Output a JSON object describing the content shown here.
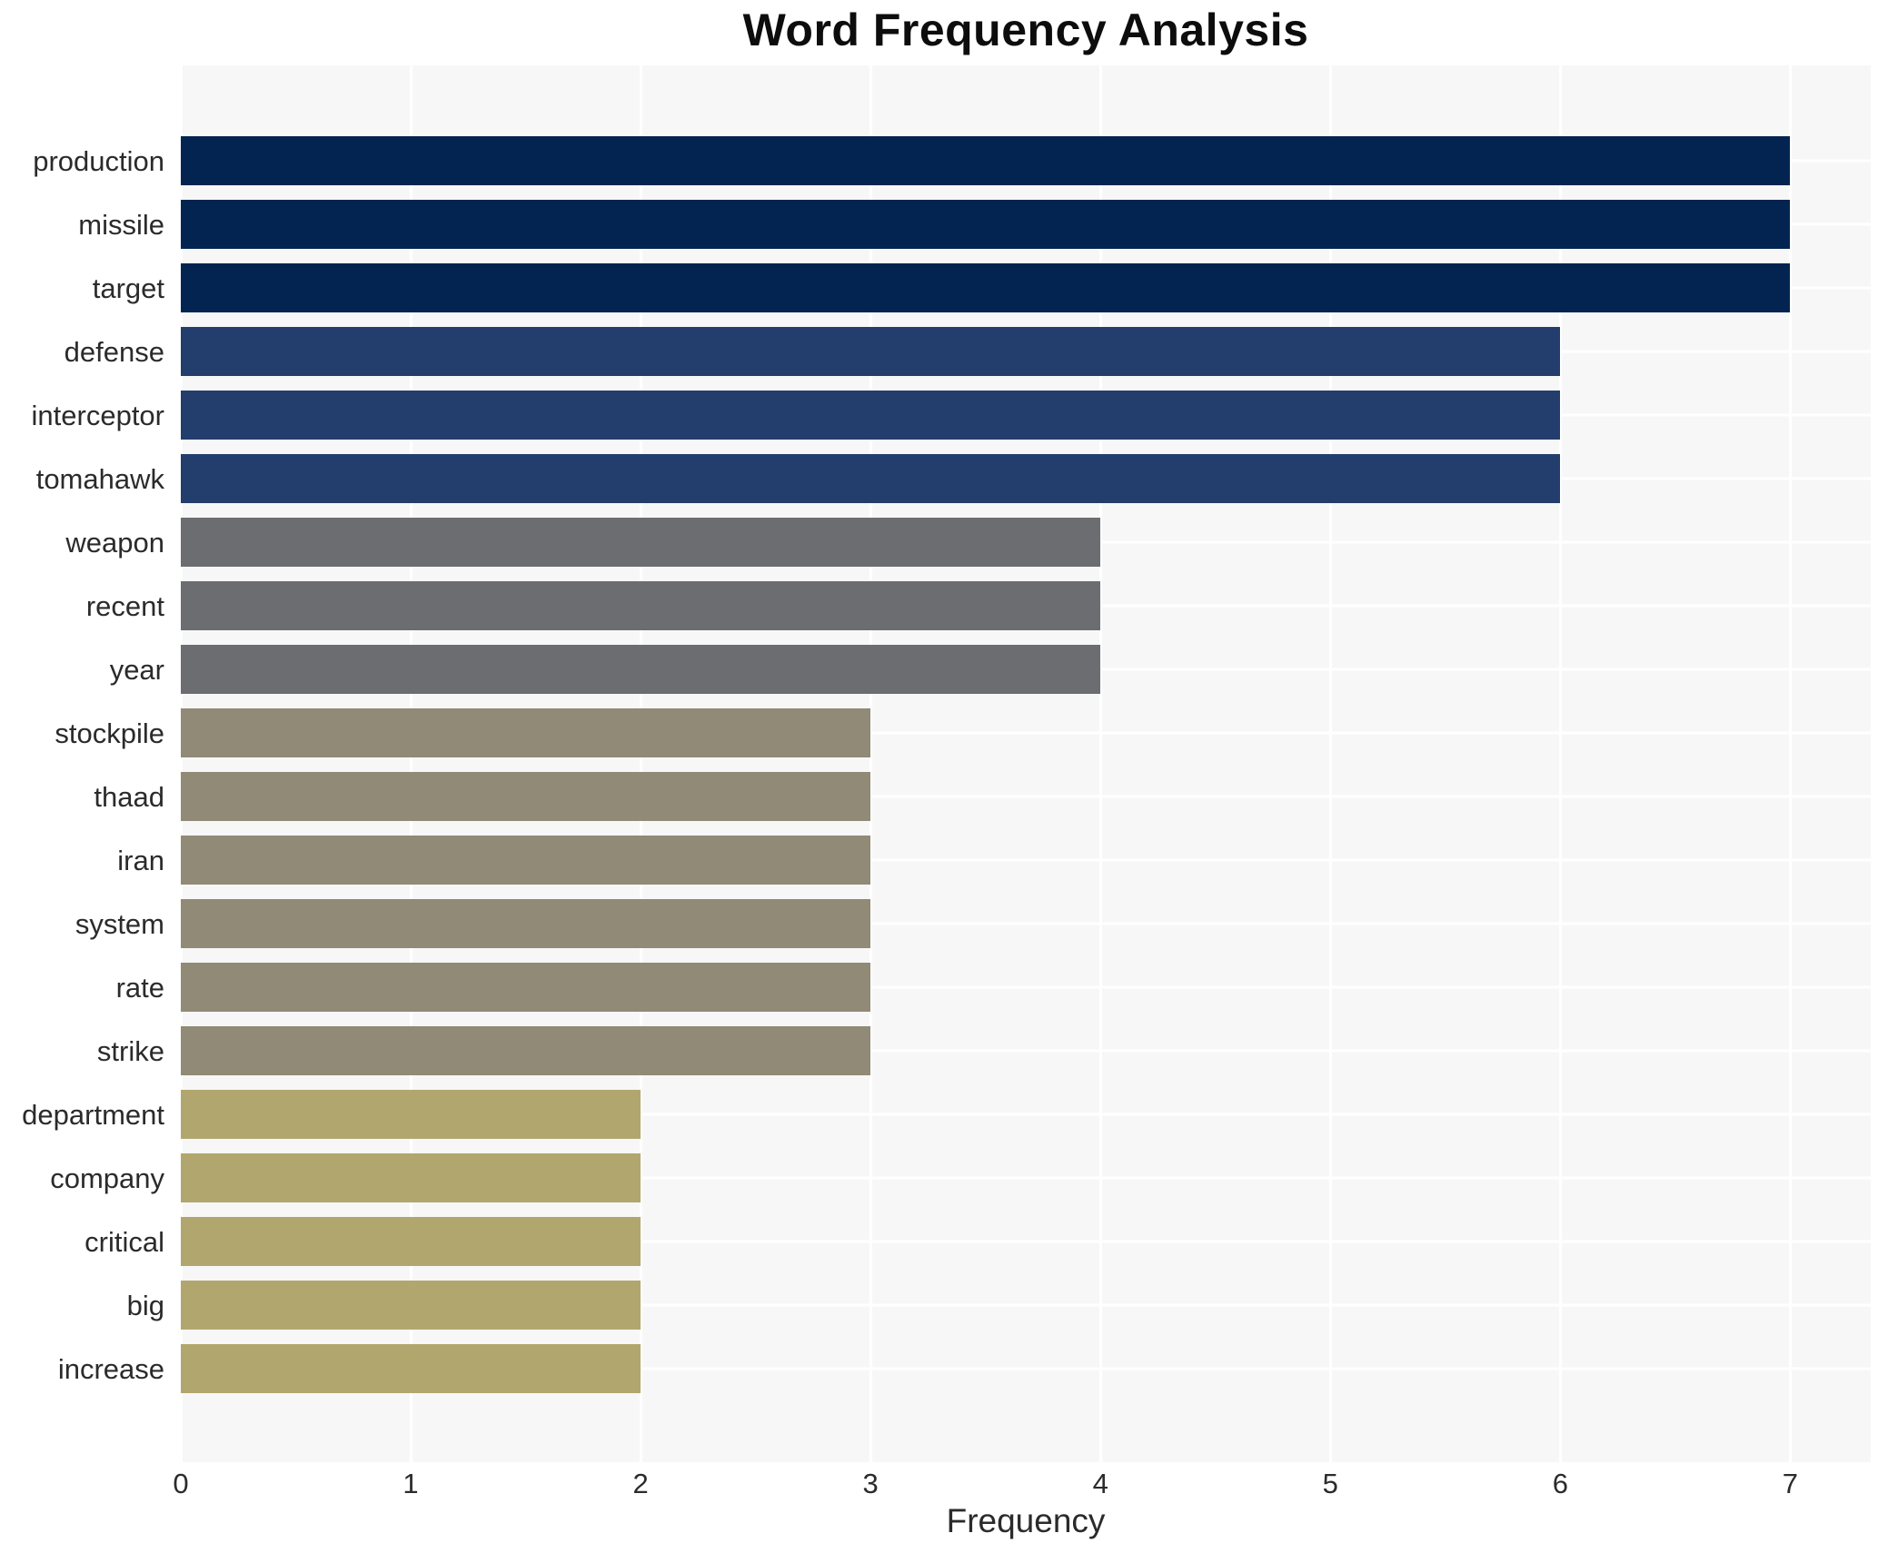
{
  "title": "Word Frequency Analysis",
  "xlabel": "Frequency",
  "chart_data": {
    "type": "bar",
    "orientation": "horizontal",
    "title": "Word Frequency Analysis",
    "xlabel": "Frequency",
    "ylabel": "",
    "categories": [
      "production",
      "missile",
      "target",
      "defense",
      "interceptor",
      "tomahawk",
      "weapon",
      "recent",
      "year",
      "stockpile",
      "thaad",
      "iran",
      "system",
      "rate",
      "strike",
      "department",
      "company",
      "critical",
      "big",
      "increase"
    ],
    "values": [
      7,
      7,
      7,
      6,
      6,
      6,
      4,
      4,
      4,
      3,
      3,
      3,
      3,
      3,
      3,
      2,
      2,
      2,
      2,
      2
    ],
    "xticks": [
      0,
      1,
      2,
      3,
      4,
      5,
      6,
      7
    ],
    "xlim": [
      0,
      7.35
    ],
    "grid": true,
    "legend_position": "none",
    "colors_by_value": {
      "7": "#032450",
      "6": "#233e6c",
      "4": "#6b6d71",
      "3": "#908a76",
      "2": "#b1a76e"
    },
    "plot_background": "#f7f7f7",
    "gridline_color": "#ffffff",
    "label_color": "#2b2b2b",
    "title_color": "#0d0d0d"
  }
}
